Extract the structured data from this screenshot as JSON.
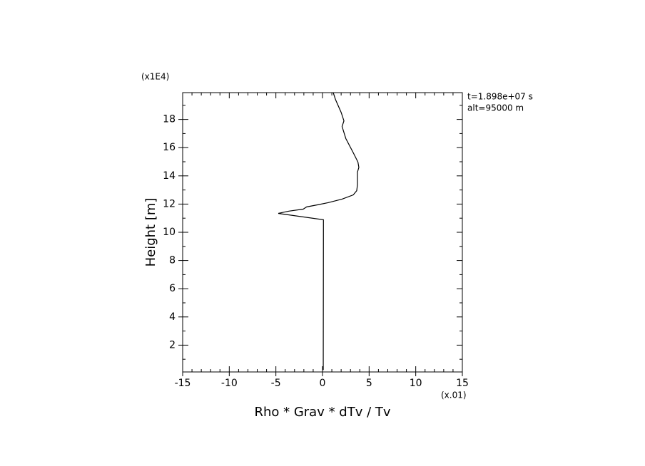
{
  "chart_data": {
    "type": "line",
    "x_label": "Rho * Grav * dTv / Tv",
    "y_label": "Height [m]",
    "x_multiplier": "(x.01)",
    "y_multiplier": "(x1E4)",
    "annotations": [
      "t=1.898e+07 s",
      "alt=95000 m"
    ],
    "xlim": [
      -15,
      15
    ],
    "ylim": [
      0.1,
      19.9
    ],
    "xticks": [
      -15,
      -10,
      -5,
      0,
      5,
      10,
      15
    ],
    "yticks": [
      2,
      4,
      6,
      8,
      10,
      12,
      14,
      16,
      18
    ],
    "xminorticks": [
      -14,
      -13,
      -12,
      -11,
      -9,
      -8,
      -7,
      -6,
      -4,
      -3,
      -2,
      -1,
      1,
      2,
      3,
      4,
      6,
      7,
      8,
      9,
      11,
      12,
      13,
      14
    ],
    "yminorticks": [
      1,
      3,
      5,
      7,
      9,
      11,
      13,
      15,
      17,
      19
    ],
    "series": [
      {
        "color": "#000000",
        "x": [
          0.08,
          0.1,
          -4.74,
          -3.6,
          -2.07,
          -1.7,
          -0.5,
          0.6,
          2.1,
          3.3,
          3.67,
          3.75,
          3.75,
          3.9,
          3.8,
          3.3,
          2.5,
          2.1,
          2.3,
          2.0,
          1.4,
          1.15
        ],
        "y": [
          0.23,
          10.89,
          11.34,
          11.5,
          11.64,
          11.8,
          11.95,
          12.1,
          12.35,
          12.65,
          12.95,
          13.36,
          14.27,
          14.6,
          14.98,
          15.64,
          16.65,
          17.5,
          17.9,
          18.5,
          19.4,
          19.9
        ]
      }
    ]
  }
}
